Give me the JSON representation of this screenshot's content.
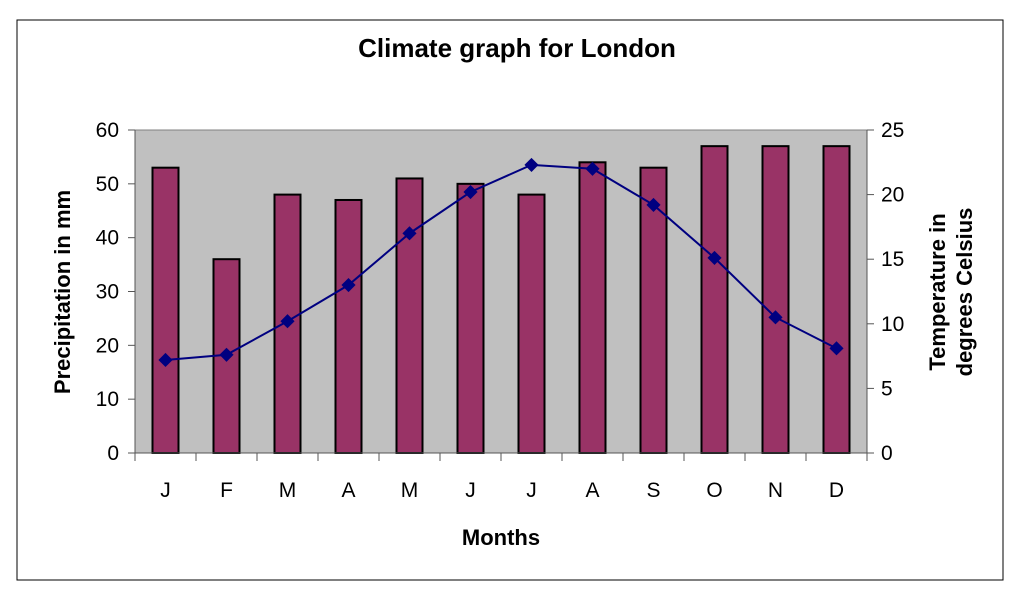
{
  "chart_data": {
    "type": "bar",
    "title": "Climate graph for London",
    "xlabel": "Months",
    "ylabel": "Precipitation in mm",
    "y2label_lines": [
      "Temperature in",
      "degrees Celsius"
    ],
    "categories": [
      "J",
      "F",
      "M",
      "A",
      "M",
      "J",
      "J",
      "A",
      "S",
      "O",
      "N",
      "D"
    ],
    "ylim": [
      0,
      60
    ],
    "yticks": [
      0,
      10,
      20,
      30,
      40,
      50,
      60
    ],
    "y2lim": [
      0,
      25
    ],
    "y2ticks": [
      0,
      5,
      10,
      15,
      20,
      25
    ],
    "series": [
      {
        "name": "Precipitation",
        "type": "bar",
        "axis": "left",
        "color": "#993366",
        "values": [
          53,
          36,
          48,
          47,
          51,
          50,
          48,
          54,
          53,
          57,
          57,
          57
        ]
      },
      {
        "name": "Temperature",
        "type": "line",
        "axis": "right",
        "color": "#000080",
        "values": [
          7.2,
          7.6,
          10.2,
          13.0,
          17.0,
          20.2,
          22.3,
          22.0,
          19.2,
          15.1,
          10.5,
          8.1
        ]
      }
    ],
    "plot_background": "#c0c0c0",
    "grid": false,
    "legend": "none"
  }
}
